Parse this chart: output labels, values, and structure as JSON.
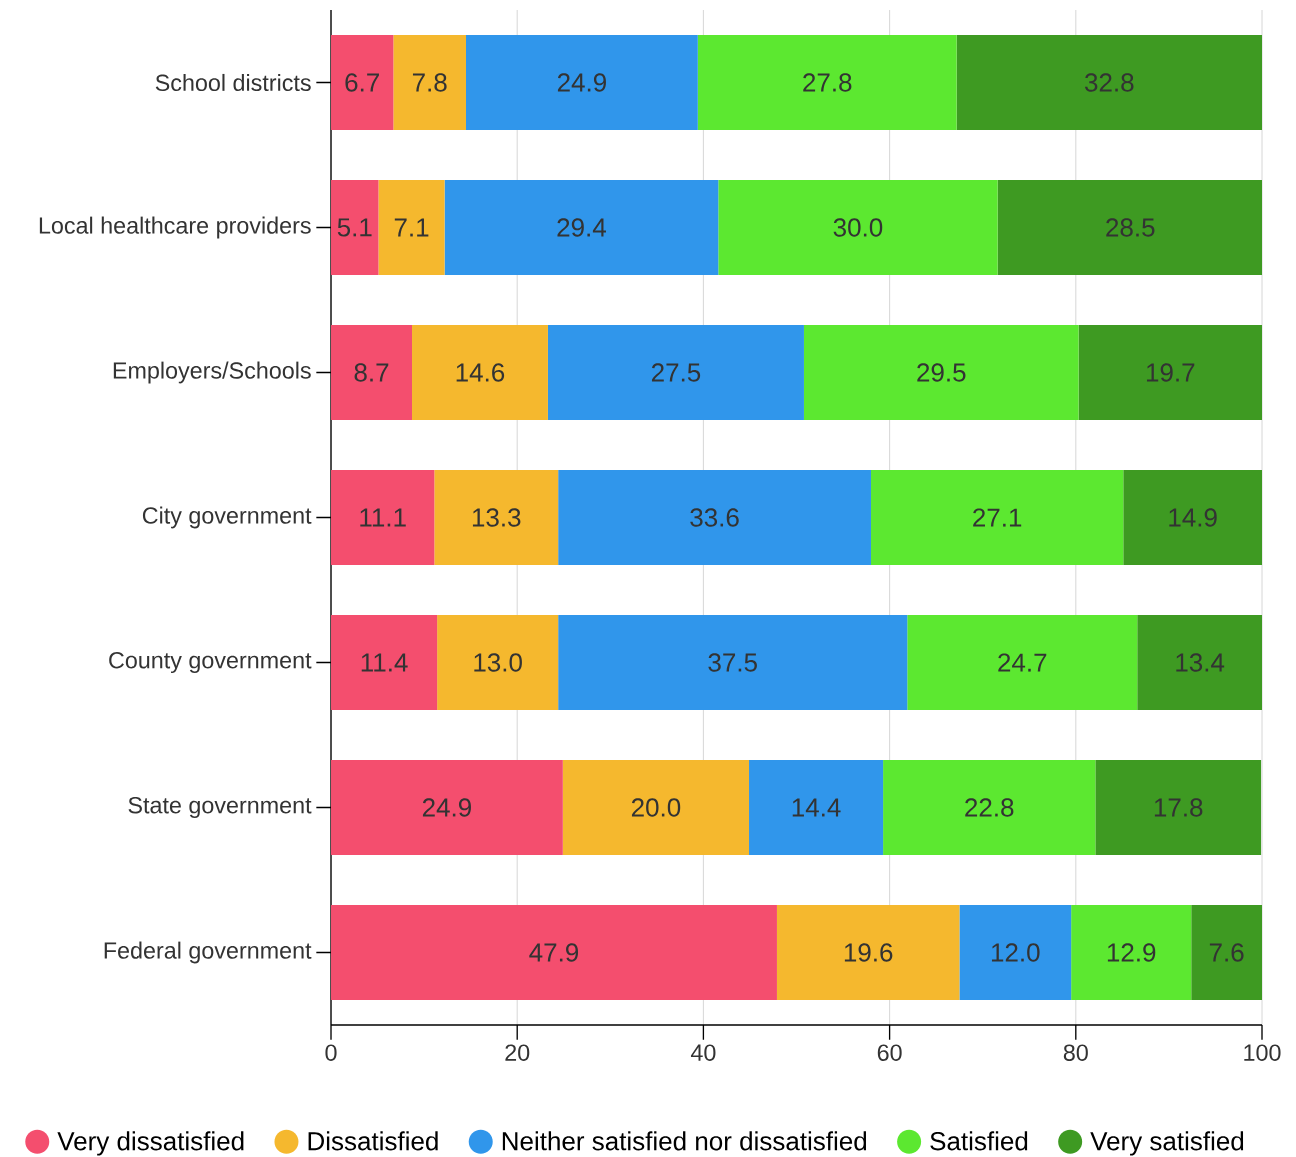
{
  "chart_data": {
    "type": "bar",
    "orientation": "horizontal",
    "stacked": true,
    "categories": [
      "School districts",
      "Local healthcare providers",
      "Employers/Schools",
      "City government",
      "County government",
      "State government",
      "Federal government"
    ],
    "series": [
      {
        "name": "Very dissatisfied",
        "color": "#f44e6e",
        "values": [
          6.7,
          5.1,
          8.7,
          11.1,
          11.4,
          24.9,
          47.9
        ],
        "value_labels": [
          "6.7",
          "5.1",
          "8.7",
          "11.1",
          "11.4",
          "24.9",
          "47.9"
        ]
      },
      {
        "name": "Dissatisfied",
        "color": "#f5b82e",
        "values": [
          7.8,
          7.1,
          14.6,
          13.3,
          13.0,
          20.0,
          19.6
        ],
        "value_labels": [
          "7.8",
          "7.1",
          "14.6",
          "13.3",
          "13.0",
          "20.0",
          "19.6"
        ]
      },
      {
        "name": "Neither satisfied nor dissatisfied",
        "color": "#3096eb",
        "values": [
          24.9,
          29.4,
          27.5,
          33.6,
          37.5,
          14.4,
          12.0
        ],
        "value_labels": [
          "24.9",
          "29.4",
          "27.5",
          "33.6",
          "37.5",
          "14.4",
          "12.0"
        ]
      },
      {
        "name": "Satisfied",
        "color": "#5ce830",
        "values": [
          27.8,
          30.0,
          29.5,
          27.1,
          24.7,
          22.8,
          12.9
        ],
        "value_labels": [
          "27.8",
          "30.0",
          "29.5",
          "27.1",
          "24.7",
          "22.8",
          "12.9"
        ]
      },
      {
        "name": "Very satisfied",
        "color": "#3e9a22",
        "values": [
          32.8,
          28.5,
          19.7,
          14.9,
          13.4,
          17.8,
          7.6
        ],
        "value_labels": [
          "32.8",
          "28.5",
          "19.7",
          "14.9",
          "13.4",
          "17.8",
          "7.6"
        ]
      }
    ],
    "xlim": [
      0,
      100
    ],
    "xticks": [
      0,
      20,
      40,
      60,
      80,
      100
    ],
    "grid": "x",
    "legend": "bottom"
  }
}
